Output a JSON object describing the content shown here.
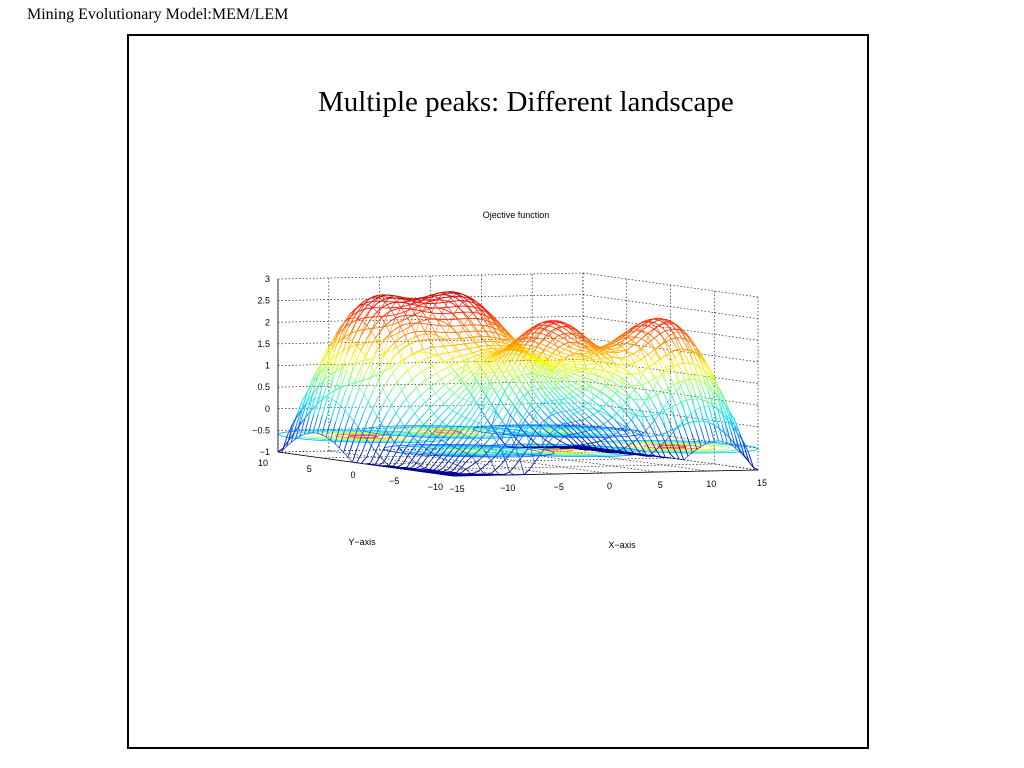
{
  "header": {
    "title": "Mining Evolutionary Model:MEM/LEM"
  },
  "slide": {
    "heading": "Multiple peaks: Different landscape"
  },
  "chart_data": {
    "type": "surface",
    "title": "Ojective function",
    "xlabel": "X−axis",
    "ylabel": "Y−axis",
    "zlabel": "",
    "xlim": [
      -15,
      15
    ],
    "ylim": [
      -10,
      10
    ],
    "zlim": [
      -1,
      3
    ],
    "x_ticks": [
      "−15",
      "−10",
      "−5",
      "0",
      "5",
      "10",
      "15"
    ],
    "y_ticks": [
      "−10",
      "−5",
      "0",
      "5",
      "10"
    ],
    "z_ticks": [
      "−1",
      "−0.5",
      "0",
      "0.5",
      "1",
      "1.5",
      "2",
      "2.5",
      "3"
    ],
    "grid": true,
    "colormap": [
      "#00008f",
      "#0050ff",
      "#00dfff",
      "#70ff8f",
      "#ffff00",
      "#ff8000",
      "#ff1000",
      "#800000"
    ],
    "contour_plot_on_base": true
  }
}
